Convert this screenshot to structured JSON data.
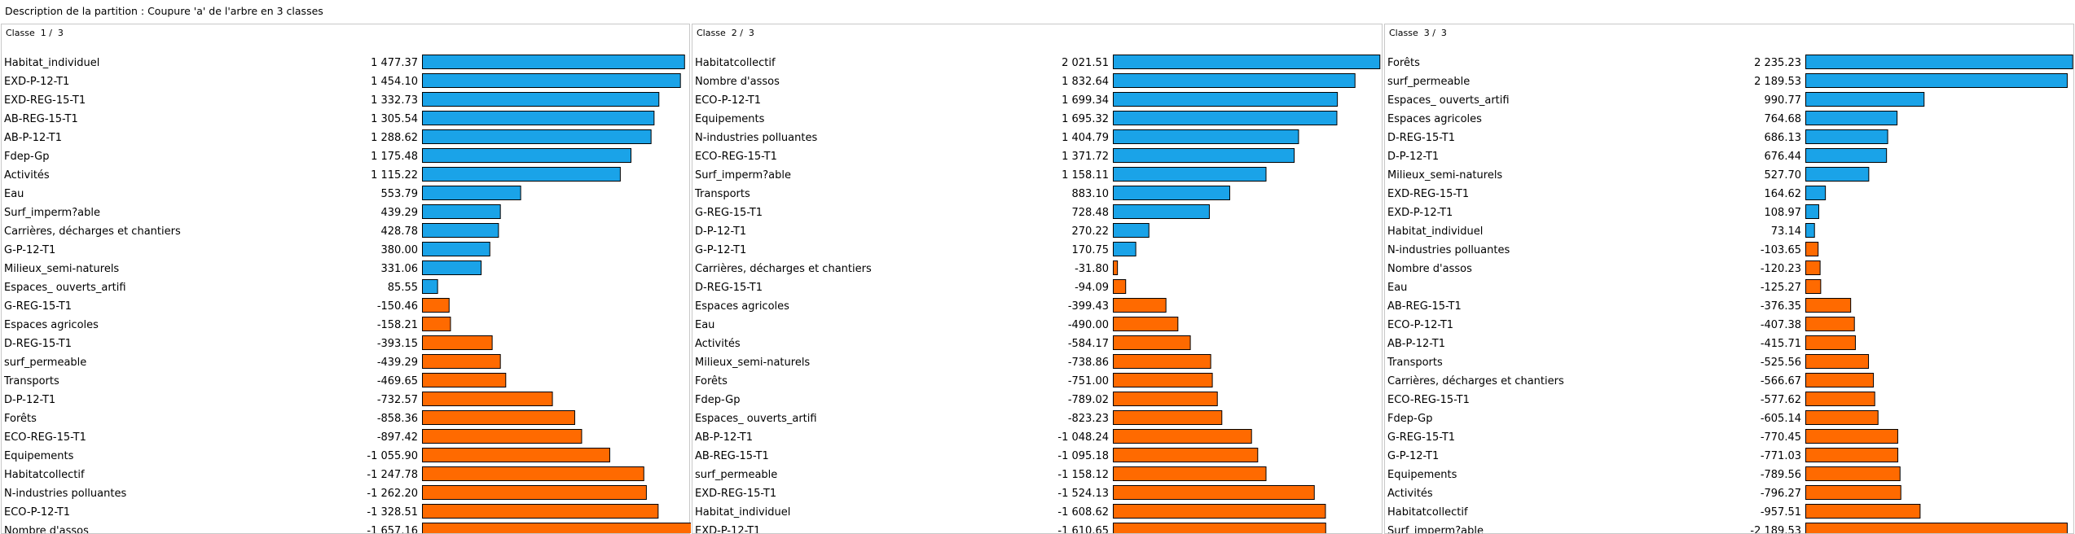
{
  "title": "Description de la partition : Coupure 'a' de l'arbre en  3 classes",
  "colors": {
    "positive": "#1aa3e8",
    "negative": "#ff6a00",
    "border": "#000000"
  },
  "chart_data": [
    {
      "type": "bar",
      "title": "Classe  1 /  3",
      "orientation": "horizontal",
      "categories": [
        "Habitat_individuel",
        "EXD-P-12-T1",
        "EXD-REG-15-T1",
        "AB-REG-15-T1",
        "AB-P-12-T1",
        "Fdep-Gp",
        "Activités",
        "Eau",
        "Surf_imperm?able",
        "Carrières, décharges et chantiers",
        "G-P-12-T1",
        "Milieux_semi-naturels",
        "Espaces_ ouverts_artifi",
        "G-REG-15-T1",
        "Espaces agricoles",
        "D-REG-15-T1",
        "surf_permeable",
        "Transports",
        "D-P-12-T1",
        "Forêts",
        "ECO-REG-15-T1",
        "Equipements",
        "Habitatcollectif",
        "N-industries polluantes",
        "ECO-P-12-T1",
        "Nombre d'assos"
      ],
      "values": [
        1477.37,
        1454.1,
        1332.73,
        1305.54,
        1288.62,
        1175.48,
        1115.22,
        553.79,
        439.29,
        428.78,
        380.0,
        331.06,
        85.55,
        -150.46,
        -158.21,
        -393.15,
        -439.29,
        -469.65,
        -732.57,
        -858.36,
        -897.42,
        -1055.9,
        -1247.78,
        -1262.2,
        -1328.51,
        -1657.16
      ],
      "value_labels": [
        "1 477.37",
        "1 454.10",
        "1 332.73",
        "1 305.54",
        "1 288.62",
        "1 175.48",
        "1 115.22",
        "553.79",
        "439.29",
        "428.78",
        "380.00",
        "331.06",
        "85.55",
        "-150.46",
        "-158.21",
        "-393.15",
        "-439.29",
        "-469.65",
        "-732.57",
        "-858.36",
        "-897.42",
        "-1 055.90",
        "-1 247.78",
        "-1 262.20",
        "-1 328.51",
        "-1 657.16"
      ]
    },
    {
      "type": "bar",
      "title": "Classe  2 /  3",
      "orientation": "horizontal",
      "categories": [
        "Habitatcollectif",
        "Nombre d'assos",
        "ECO-P-12-T1",
        "Equipements",
        "N-industries polluantes",
        "ECO-REG-15-T1",
        "Surf_imperm?able",
        "Transports",
        "G-REG-15-T1",
        "D-P-12-T1",
        "G-P-12-T1",
        "Carrières, décharges et chantiers",
        "D-REG-15-T1",
        "Espaces agricoles",
        "Eau",
        "Activités",
        "Milieux_semi-naturels",
        "Forêts",
        "Fdep-Gp",
        "Espaces_ ouverts_artifi",
        "AB-P-12-T1",
        "AB-REG-15-T1",
        "surf_permeable",
        "EXD-REG-15-T1",
        "Habitat_individuel",
        "EXD-P-12-T1"
      ],
      "values": [
        2021.51,
        1832.64,
        1699.34,
        1695.32,
        1404.79,
        1371.72,
        1158.11,
        883.1,
        728.48,
        270.22,
        170.75,
        -31.8,
        -94.09,
        -399.43,
        -490.0,
        -584.17,
        -738.86,
        -751.0,
        -789.02,
        -823.23,
        -1048.24,
        -1095.18,
        -1158.12,
        -1524.13,
        -1608.62,
        -1610.65
      ],
      "value_labels": [
        "2 021.51",
        "1 832.64",
        "1 699.34",
        "1 695.32",
        "1 404.79",
        "1 371.72",
        "1 158.11",
        "883.10",
        "728.48",
        "270.22",
        "170.75",
        "-31.80",
        "-94.09",
        "-399.43",
        "-490.00",
        "-584.17",
        "-738.86",
        "-751.00",
        "-789.02",
        "-823.23",
        "-1 048.24",
        "-1 095.18",
        "-1 158.12",
        "-1 524.13",
        "-1 608.62",
        "-1 610.65"
      ]
    },
    {
      "type": "bar",
      "title": "Classe  3 /  3",
      "orientation": "horizontal",
      "categories": [
        "Forêts",
        "surf_permeable",
        "Espaces_ ouverts_artifi",
        "Espaces agricoles",
        "D-REG-15-T1",
        "D-P-12-T1",
        "Milieux_semi-naturels",
        "EXD-REG-15-T1",
        "EXD-P-12-T1",
        "Habitat_individuel",
        "N-industries polluantes",
        "Nombre d'assos",
        "Eau",
        "AB-REG-15-T1",
        "ECO-P-12-T1",
        "AB-P-12-T1",
        "Transports",
        "Carrières, décharges et chantiers",
        "ECO-REG-15-T1",
        "Fdep-Gp",
        "G-REG-15-T1",
        "G-P-12-T1",
        "Equipements",
        "Activités",
        "Habitatcollectif",
        "Surf_imperm?able"
      ],
      "values": [
        2235.23,
        2189.53,
        990.77,
        764.68,
        686.13,
        676.44,
        527.7,
        164.62,
        108.97,
        73.14,
        -103.65,
        -120.23,
        -125.27,
        -376.35,
        -407.38,
        -415.71,
        -525.56,
        -566.67,
        -577.62,
        -605.14,
        -770.45,
        -771.03,
        -789.56,
        -796.27,
        -957.51,
        -2189.53
      ],
      "value_labels": [
        "2 235.23",
        "2 189.53",
        "990.77",
        "764.68",
        "686.13",
        "676.44",
        "527.70",
        "164.62",
        "108.97",
        "73.14",
        "-103.65",
        "-120.23",
        "-125.27",
        "-376.35",
        "-407.38",
        "-415.71",
        "-525.56",
        "-566.67",
        "-577.62",
        "-605.14",
        "-770.45",
        "-771.03",
        "-789.56",
        "-796.27",
        "-957.51",
        "-2 189.53"
      ]
    }
  ]
}
